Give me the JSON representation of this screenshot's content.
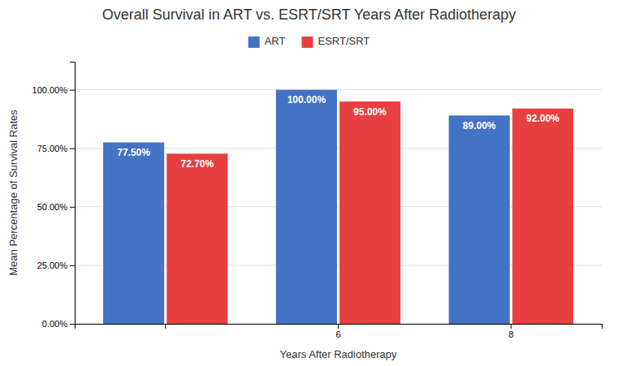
{
  "chart_data": {
    "type": "bar",
    "title": "Overall Survival in ART vs. ESRT/SRT Years After Radiotherapy",
    "xlabel": "Years After Radiotherapy",
    "ylabel": "Mean Percentage of Survival Rates",
    "categories": [
      null,
      "6",
      "8"
    ],
    "series": [
      {
        "name": "ART",
        "color": "#4472C4",
        "values": [
          77.5,
          100.0,
          89.0
        ],
        "value_labels": [
          "77.50%",
          "100.00%",
          "89.00%"
        ]
      },
      {
        "name": "ESRT/SRT",
        "color": "#E84040",
        "values": [
          72.7,
          95.0,
          92.0
        ],
        "value_labels": [
          "72.70%",
          "95.00%",
          "92.00%"
        ]
      }
    ],
    "ylim": [
      0,
      112
    ],
    "yticks": [
      {
        "value": 0,
        "label": "0.00%"
      },
      {
        "value": 25,
        "label": "25.00%"
      },
      {
        "value": 50,
        "label": "50.00%"
      },
      {
        "value": 75,
        "label": "75.00%"
      },
      {
        "value": 100,
        "label": "100.00%"
      }
    ],
    "grid": true,
    "legend": "top",
    "data_labels": true
  }
}
